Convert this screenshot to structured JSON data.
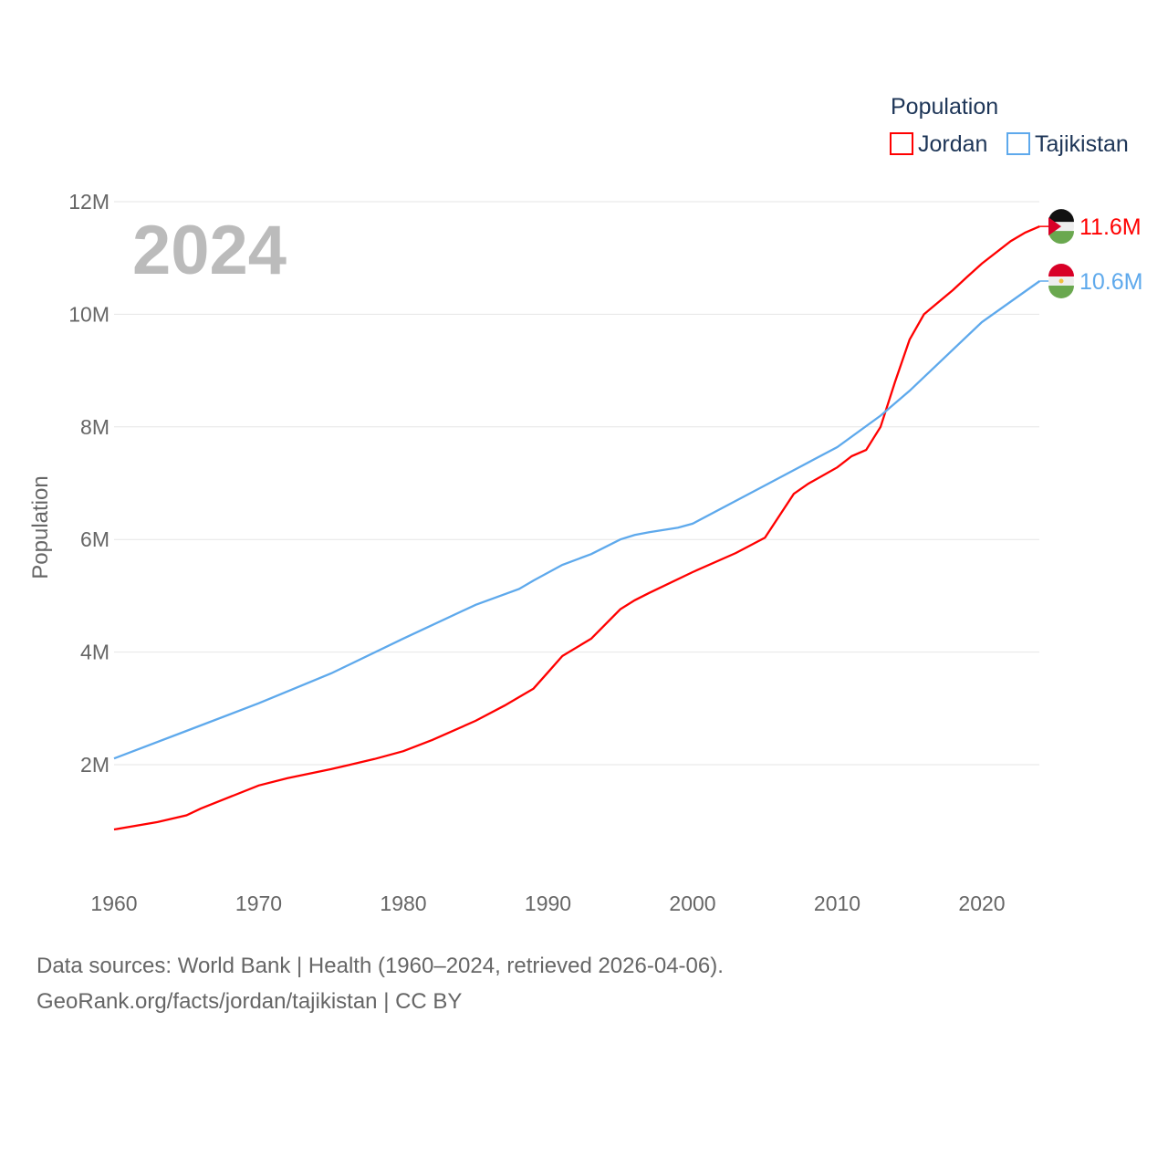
{
  "chart_data": {
    "type": "line",
    "title": "Population",
    "ylabel": "Population",
    "xlabel": "",
    "year_label": "2024",
    "ylim": [
      0,
      12000000
    ],
    "xlim": [
      1960,
      2024
    ],
    "yticks": [
      {
        "v": 2000000,
        "label": "2M"
      },
      {
        "v": 4000000,
        "label": "4M"
      },
      {
        "v": 6000000,
        "label": "6M"
      },
      {
        "v": 8000000,
        "label": "8M"
      },
      {
        "v": 10000000,
        "label": "10M"
      },
      {
        "v": 12000000,
        "label": "12M"
      }
    ],
    "xticks": [
      1960,
      1970,
      1980,
      1990,
      2000,
      2010,
      2020
    ],
    "grid": true,
    "legend_position": "top-right",
    "series": [
      {
        "name": "Jordan",
        "color": "#ff0000",
        "end_label": "11.6M",
        "points": [
          [
            1960,
            0.85
          ],
          [
            1963,
            0.98
          ],
          [
            1965,
            1.1
          ],
          [
            1966,
            1.22
          ],
          [
            1970,
            1.63
          ],
          [
            1972,
            1.76
          ],
          [
            1975,
            1.92
          ],
          [
            1978,
            2.1
          ],
          [
            1980,
            2.24
          ],
          [
            1982,
            2.44
          ],
          [
            1985,
            2.78
          ],
          [
            1987,
            3.05
          ],
          [
            1989,
            3.35
          ],
          [
            1990,
            3.64
          ],
          [
            1991,
            3.93
          ],
          [
            1993,
            4.24
          ],
          [
            1995,
            4.76
          ],
          [
            1996,
            4.92
          ],
          [
            1997,
            5.05
          ],
          [
            2000,
            5.42
          ],
          [
            2003,
            5.76
          ],
          [
            2005,
            6.03
          ],
          [
            2007,
            6.81
          ],
          [
            2008,
            6.99
          ],
          [
            2010,
            7.28
          ],
          [
            2011,
            7.48
          ],
          [
            2012,
            7.59
          ],
          [
            2013,
            8.0
          ],
          [
            2014,
            8.8
          ],
          [
            2015,
            9.55
          ],
          [
            2016,
            10.0
          ],
          [
            2018,
            10.43
          ],
          [
            2019,
            10.67
          ],
          [
            2020,
            10.9
          ],
          [
            2022,
            11.3
          ],
          [
            2023,
            11.45
          ],
          [
            2024,
            11.56
          ]
        ]
      },
      {
        "name": "Tajikistan",
        "color": "#5ea9ec",
        "end_label": "10.6M",
        "points": [
          [
            1960,
            2.11
          ],
          [
            1965,
            2.6
          ],
          [
            1970,
            3.09
          ],
          [
            1975,
            3.62
          ],
          [
            1980,
            4.24
          ],
          [
            1985,
            4.84
          ],
          [
            1988,
            5.12
          ],
          [
            1989,
            5.27
          ],
          [
            1991,
            5.55
          ],
          [
            1993,
            5.74
          ],
          [
            1995,
            6.0
          ],
          [
            1996,
            6.08
          ],
          [
            1997,
            6.13
          ],
          [
            1999,
            6.21
          ],
          [
            2000,
            6.28
          ],
          [
            2005,
            6.96
          ],
          [
            2010,
            7.64
          ],
          [
            2013,
            8.2
          ],
          [
            2015,
            8.64
          ],
          [
            2020,
            9.86
          ],
          [
            2024,
            10.59
          ]
        ]
      }
    ]
  },
  "footer": {
    "line1": "Data sources: World Bank | Health (1960–2024, retrieved 2026-04-06).",
    "line2": "GeoRank.org/facts/jordan/tajikistan | CC BY"
  }
}
